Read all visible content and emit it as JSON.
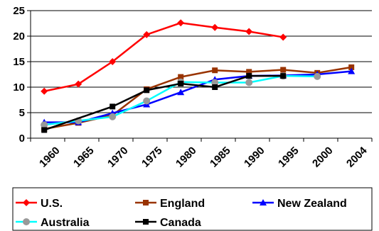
{
  "chart_data": {
    "type": "line",
    "title": "",
    "xlabel": "",
    "ylabel": "",
    "ylim": [
      0,
      25
    ],
    "yticks": [
      "0",
      "5",
      "10",
      "15",
      "20",
      "25"
    ],
    "xticks": [
      "1960",
      "1965",
      "1970",
      "1975",
      "1980",
      "1985",
      "1990",
      "1995",
      "2000",
      "2004"
    ],
    "grid": "horizontal",
    "legend_position": "bottom",
    "series": [
      {
        "name": "U.S.",
        "color": "#ff0000",
        "marker": "diamond",
        "x": [
          1962,
          1967,
          1972,
          1977,
          1982,
          1987,
          1992,
          1997
        ],
        "y": [
          9.2,
          10.6,
          15.0,
          20.3,
          22.6,
          21.7,
          20.9,
          19.8
        ]
      },
      {
        "name": "England",
        "color": "#993300",
        "marker": "square",
        "x": [
          1962,
          1967,
          1972,
          1977,
          1982,
          1987,
          1992,
          1997,
          2002,
          2007
        ],
        "y": [
          1.8,
          3.0,
          4.5,
          9.6,
          12.0,
          13.3,
          13.0,
          13.4,
          12.8,
          13.9
        ]
      },
      {
        "name": "New Zealand",
        "color": "#0000ff",
        "marker": "triangle",
        "x": [
          1962,
          1967,
          1972,
          1977,
          1982,
          1987,
          1992,
          1997,
          2002,
          2007
        ],
        "y": [
          3.1,
          3.1,
          4.9,
          6.6,
          9.0,
          11.5,
          12.2,
          12.3,
          12.5,
          13.1
        ]
      },
      {
        "name": "Australia",
        "color": "#999999",
        "line_color": "#00ffff",
        "marker": "circle",
        "x": [
          1962,
          1967,
          1972,
          1977,
          1982,
          1987,
          1992,
          1997,
          2002
        ],
        "y": [
          2.6,
          3.4,
          4.2,
          7.3,
          11.0,
          10.9,
          10.9,
          12.2,
          12.1
        ]
      },
      {
        "name": "Canada",
        "color": "#000000",
        "marker": "square",
        "x": [
          1962,
          1972,
          1977,
          1982,
          1987,
          1992,
          1997
        ],
        "y": [
          1.6,
          6.2,
          9.4,
          10.7,
          10.0,
          12.2,
          12.2
        ]
      }
    ]
  }
}
